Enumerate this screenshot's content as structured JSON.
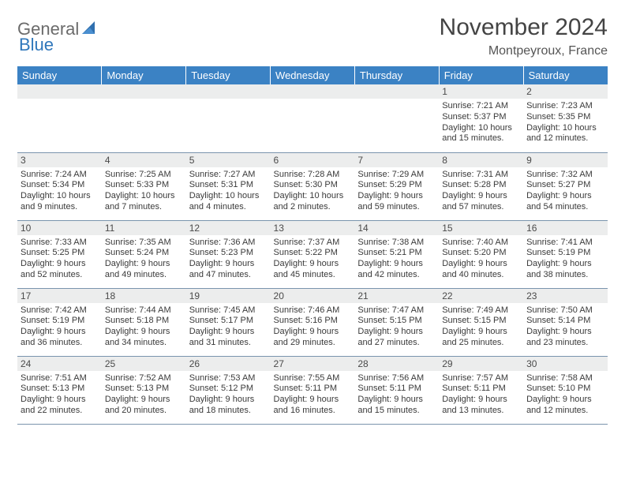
{
  "brand": {
    "word1": "General",
    "word2": "Blue"
  },
  "colors": {
    "header_bg": "#3b82c4",
    "header_text": "#ffffff",
    "daynum_bg": "#eceded",
    "row_border": "#7a94ad",
    "logo_gray": "#6b6b6b",
    "logo_blue": "#2f77bb",
    "text": "#3a3a3a"
  },
  "title": {
    "month_year": "November 2024",
    "location": "Montpeyroux, France"
  },
  "weekdays": [
    "Sunday",
    "Monday",
    "Tuesday",
    "Wednesday",
    "Thursday",
    "Friday",
    "Saturday"
  ],
  "grid": [
    [
      {
        "empty": true
      },
      {
        "empty": true
      },
      {
        "empty": true
      },
      {
        "empty": true
      },
      {
        "empty": true
      },
      {
        "day": "1",
        "sunrise": "Sunrise: 7:21 AM",
        "sunset": "Sunset: 5:37 PM",
        "daylight1": "Daylight: 10 hours",
        "daylight2": "and 15 minutes."
      },
      {
        "day": "2",
        "sunrise": "Sunrise: 7:23 AM",
        "sunset": "Sunset: 5:35 PM",
        "daylight1": "Daylight: 10 hours",
        "daylight2": "and 12 minutes."
      }
    ],
    [
      {
        "day": "3",
        "sunrise": "Sunrise: 7:24 AM",
        "sunset": "Sunset: 5:34 PM",
        "daylight1": "Daylight: 10 hours",
        "daylight2": "and 9 minutes."
      },
      {
        "day": "4",
        "sunrise": "Sunrise: 7:25 AM",
        "sunset": "Sunset: 5:33 PM",
        "daylight1": "Daylight: 10 hours",
        "daylight2": "and 7 minutes."
      },
      {
        "day": "5",
        "sunrise": "Sunrise: 7:27 AM",
        "sunset": "Sunset: 5:31 PM",
        "daylight1": "Daylight: 10 hours",
        "daylight2": "and 4 minutes."
      },
      {
        "day": "6",
        "sunrise": "Sunrise: 7:28 AM",
        "sunset": "Sunset: 5:30 PM",
        "daylight1": "Daylight: 10 hours",
        "daylight2": "and 2 minutes."
      },
      {
        "day": "7",
        "sunrise": "Sunrise: 7:29 AM",
        "sunset": "Sunset: 5:29 PM",
        "daylight1": "Daylight: 9 hours",
        "daylight2": "and 59 minutes."
      },
      {
        "day": "8",
        "sunrise": "Sunrise: 7:31 AM",
        "sunset": "Sunset: 5:28 PM",
        "daylight1": "Daylight: 9 hours",
        "daylight2": "and 57 minutes."
      },
      {
        "day": "9",
        "sunrise": "Sunrise: 7:32 AM",
        "sunset": "Sunset: 5:27 PM",
        "daylight1": "Daylight: 9 hours",
        "daylight2": "and 54 minutes."
      }
    ],
    [
      {
        "day": "10",
        "sunrise": "Sunrise: 7:33 AM",
        "sunset": "Sunset: 5:25 PM",
        "daylight1": "Daylight: 9 hours",
        "daylight2": "and 52 minutes."
      },
      {
        "day": "11",
        "sunrise": "Sunrise: 7:35 AM",
        "sunset": "Sunset: 5:24 PM",
        "daylight1": "Daylight: 9 hours",
        "daylight2": "and 49 minutes."
      },
      {
        "day": "12",
        "sunrise": "Sunrise: 7:36 AM",
        "sunset": "Sunset: 5:23 PM",
        "daylight1": "Daylight: 9 hours",
        "daylight2": "and 47 minutes."
      },
      {
        "day": "13",
        "sunrise": "Sunrise: 7:37 AM",
        "sunset": "Sunset: 5:22 PM",
        "daylight1": "Daylight: 9 hours",
        "daylight2": "and 45 minutes."
      },
      {
        "day": "14",
        "sunrise": "Sunrise: 7:38 AM",
        "sunset": "Sunset: 5:21 PM",
        "daylight1": "Daylight: 9 hours",
        "daylight2": "and 42 minutes."
      },
      {
        "day": "15",
        "sunrise": "Sunrise: 7:40 AM",
        "sunset": "Sunset: 5:20 PM",
        "daylight1": "Daylight: 9 hours",
        "daylight2": "and 40 minutes."
      },
      {
        "day": "16",
        "sunrise": "Sunrise: 7:41 AM",
        "sunset": "Sunset: 5:19 PM",
        "daylight1": "Daylight: 9 hours",
        "daylight2": "and 38 minutes."
      }
    ],
    [
      {
        "day": "17",
        "sunrise": "Sunrise: 7:42 AM",
        "sunset": "Sunset: 5:19 PM",
        "daylight1": "Daylight: 9 hours",
        "daylight2": "and 36 minutes."
      },
      {
        "day": "18",
        "sunrise": "Sunrise: 7:44 AM",
        "sunset": "Sunset: 5:18 PM",
        "daylight1": "Daylight: 9 hours",
        "daylight2": "and 34 minutes."
      },
      {
        "day": "19",
        "sunrise": "Sunrise: 7:45 AM",
        "sunset": "Sunset: 5:17 PM",
        "daylight1": "Daylight: 9 hours",
        "daylight2": "and 31 minutes."
      },
      {
        "day": "20",
        "sunrise": "Sunrise: 7:46 AM",
        "sunset": "Sunset: 5:16 PM",
        "daylight1": "Daylight: 9 hours",
        "daylight2": "and 29 minutes."
      },
      {
        "day": "21",
        "sunrise": "Sunrise: 7:47 AM",
        "sunset": "Sunset: 5:15 PM",
        "daylight1": "Daylight: 9 hours",
        "daylight2": "and 27 minutes."
      },
      {
        "day": "22",
        "sunrise": "Sunrise: 7:49 AM",
        "sunset": "Sunset: 5:15 PM",
        "daylight1": "Daylight: 9 hours",
        "daylight2": "and 25 minutes."
      },
      {
        "day": "23",
        "sunrise": "Sunrise: 7:50 AM",
        "sunset": "Sunset: 5:14 PM",
        "daylight1": "Daylight: 9 hours",
        "daylight2": "and 23 minutes."
      }
    ],
    [
      {
        "day": "24",
        "sunrise": "Sunrise: 7:51 AM",
        "sunset": "Sunset: 5:13 PM",
        "daylight1": "Daylight: 9 hours",
        "daylight2": "and 22 minutes."
      },
      {
        "day": "25",
        "sunrise": "Sunrise: 7:52 AM",
        "sunset": "Sunset: 5:13 PM",
        "daylight1": "Daylight: 9 hours",
        "daylight2": "and 20 minutes."
      },
      {
        "day": "26",
        "sunrise": "Sunrise: 7:53 AM",
        "sunset": "Sunset: 5:12 PM",
        "daylight1": "Daylight: 9 hours",
        "daylight2": "and 18 minutes."
      },
      {
        "day": "27",
        "sunrise": "Sunrise: 7:55 AM",
        "sunset": "Sunset: 5:11 PM",
        "daylight1": "Daylight: 9 hours",
        "daylight2": "and 16 minutes."
      },
      {
        "day": "28",
        "sunrise": "Sunrise: 7:56 AM",
        "sunset": "Sunset: 5:11 PM",
        "daylight1": "Daylight: 9 hours",
        "daylight2": "and 15 minutes."
      },
      {
        "day": "29",
        "sunrise": "Sunrise: 7:57 AM",
        "sunset": "Sunset: 5:11 PM",
        "daylight1": "Daylight: 9 hours",
        "daylight2": "and 13 minutes."
      },
      {
        "day": "30",
        "sunrise": "Sunrise: 7:58 AM",
        "sunset": "Sunset: 5:10 PM",
        "daylight1": "Daylight: 9 hours",
        "daylight2": "and 12 minutes."
      }
    ]
  ]
}
